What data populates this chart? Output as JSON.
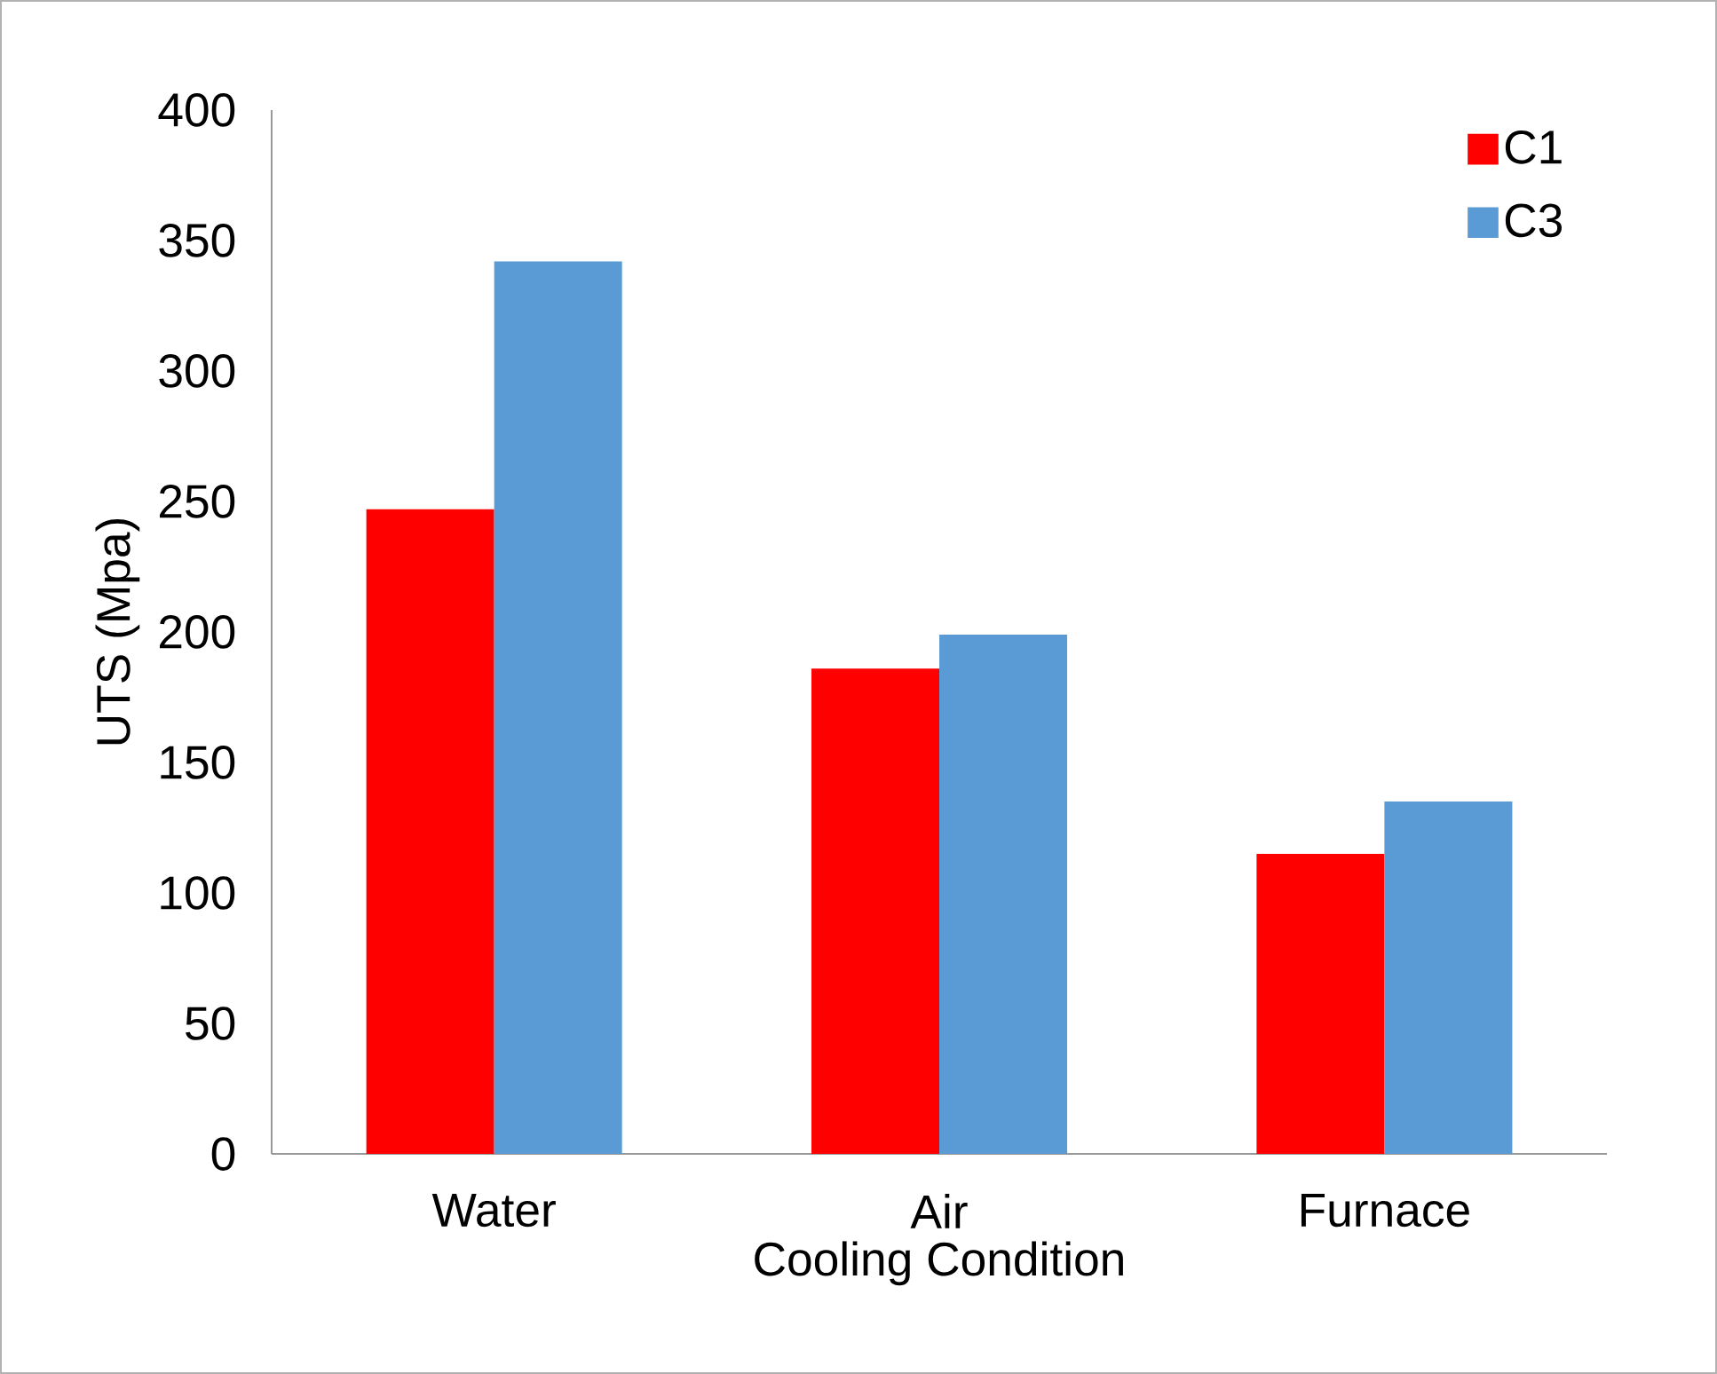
{
  "chart_data": {
    "type": "bar",
    "xlabel": "Cooling Condition",
    "ylabel": "UTS (Mpa)",
    "categories": [
      "Water",
      "Air",
      "Furnace"
    ],
    "series": [
      {
        "name": "C1",
        "color": "#ff0000",
        "values": [
          247,
          186,
          115
        ]
      },
      {
        "name": "C3",
        "color": "#5b9bd5",
        "values": [
          342,
          199,
          135
        ]
      }
    ],
    "ylim": [
      0,
      400
    ],
    "yticks": [
      0,
      50,
      100,
      150,
      200,
      250,
      300,
      350,
      400
    ],
    "legend": "top right"
  }
}
